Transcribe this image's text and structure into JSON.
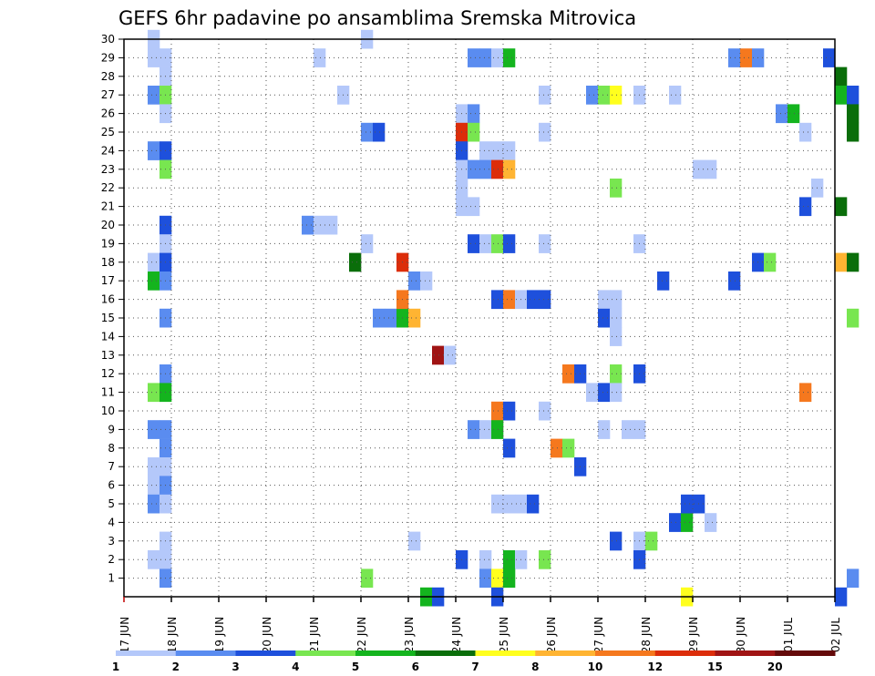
{
  "chart_data": {
    "type": "heatmap",
    "title": "GEFS 6hr padavine po ansamblima Sremska Mitrovica",
    "x_tick_labels": [
      "17 JUN",
      "18 JUN",
      "19 JUN",
      "20 JUN",
      "21 JUN",
      "22 JUN",
      "23 JUN",
      "24 JUN",
      "25 JUN",
      "26 JUN",
      "27 JUN",
      "28 JUN",
      "29 JUN",
      "30 JUN",
      "01 JUL",
      "02 JUL"
    ],
    "y_tick_labels": [
      "1",
      "2",
      "3",
      "4",
      "5",
      "6",
      "7",
      "8",
      "9",
      "10",
      "11",
      "12",
      "13",
      "14",
      "15",
      "16",
      "17",
      "18",
      "19",
      "20",
      "21",
      "22",
      "23",
      "24",
      "25",
      "26",
      "27",
      "28",
      "29",
      "30"
    ],
    "x_range_days": [
      0,
      15
    ],
    "y_range": [
      0,
      30
    ],
    "grid": true,
    "legend_position": "bottom",
    "legend_labels": [
      "1",
      "2",
      "3",
      "4",
      "5",
      "6",
      "7",
      "8",
      "10",
      "12",
      "15",
      "20"
    ],
    "legend_colors": [
      "#b4c8fa",
      "#5a8cf0",
      "#1e50dc",
      "#78e650",
      "#14b41e",
      "#0a6e0a",
      "#ffff1e",
      "#ffb432",
      "#f5781e",
      "#dc2d0a",
      "#a01414",
      "#640a0a"
    ],
    "cells_note": "each cell: [x_day_offset_from_17_JUN, member, color_index]",
    "cells": [
      [
        0.5,
        30,
        0
      ],
      [
        0.5,
        29,
        0
      ],
      [
        0.75,
        29,
        0
      ],
      [
        0.75,
        28,
        0
      ],
      [
        0.5,
        27,
        1
      ],
      [
        0.75,
        27,
        3
      ],
      [
        0.75,
        26,
        0
      ],
      [
        0.5,
        24,
        1
      ],
      [
        0.75,
        24,
        2
      ],
      [
        0.75,
        23,
        3
      ],
      [
        0.75,
        20,
        2
      ],
      [
        0.75,
        19,
        0
      ],
      [
        0.5,
        18,
        0
      ],
      [
        0.75,
        18,
        2
      ],
      [
        0.5,
        17,
        4
      ],
      [
        0.75,
        17,
        1
      ],
      [
        0.75,
        15,
        1
      ],
      [
        0.75,
        12,
        1
      ],
      [
        0.5,
        11,
        3
      ],
      [
        0.75,
        11,
        4
      ],
      [
        0.5,
        9,
        1
      ],
      [
        0.75,
        9,
        1
      ],
      [
        0.75,
        8,
        1
      ],
      [
        0.5,
        7,
        0
      ],
      [
        0.75,
        7,
        0
      ],
      [
        0.5,
        6,
        0
      ],
      [
        0.75,
        6,
        1
      ],
      [
        0.5,
        5,
        1
      ],
      [
        0.75,
        5,
        0
      ],
      [
        0.75,
        3,
        0
      ],
      [
        0.5,
        2,
        0
      ],
      [
        0.75,
        2,
        0
      ],
      [
        0.75,
        1,
        1
      ],
      [
        4.0,
        29,
        0
      ],
      [
        4.5,
        27,
        0
      ],
      [
        3.75,
        20,
        1
      ],
      [
        4.0,
        20,
        0
      ],
      [
        4.25,
        20,
        0
      ],
      [
        5.0,
        30,
        0
      ],
      [
        5.0,
        25,
        1
      ],
      [
        5.25,
        25,
        2
      ],
      [
        4.75,
        18,
        5
      ],
      [
        5.0,
        19,
        0
      ],
      [
        5.0,
        1,
        3
      ],
      [
        5.25,
        15,
        1
      ],
      [
        5.5,
        15,
        1
      ],
      [
        5.75,
        15,
        4
      ],
      [
        6.0,
        15,
        7
      ],
      [
        5.75,
        16,
        8
      ],
      [
        5.75,
        18,
        9
      ],
      [
        6.0,
        17,
        1
      ],
      [
        6.25,
        17,
        0
      ],
      [
        6.0,
        3,
        0
      ],
      [
        6.5,
        13,
        10
      ],
      [
        6.75,
        13,
        0
      ],
      [
        6.25,
        0,
        4
      ],
      [
        6.5,
        0,
        2
      ],
      [
        7.25,
        29,
        1
      ],
      [
        7.5,
        29,
        1
      ],
      [
        7.75,
        29,
        0
      ],
      [
        8.0,
        29,
        4
      ],
      [
        7.0,
        26,
        0
      ],
      [
        7.25,
        26,
        1
      ],
      [
        7.0,
        25,
        9
      ],
      [
        7.25,
        25,
        3
      ],
      [
        7.0,
        24,
        2
      ],
      [
        7.5,
        24,
        0
      ],
      [
        7.75,
        24,
        0
      ],
      [
        8.0,
        24,
        0
      ],
      [
        7.0,
        23,
        0
      ],
      [
        7.25,
        23,
        1
      ],
      [
        7.5,
        23,
        1
      ],
      [
        7.75,
        23,
        9
      ],
      [
        8.0,
        23,
        7
      ],
      [
        7.0,
        22,
        0
      ],
      [
        7.0,
        21,
        0
      ],
      [
        7.25,
        21,
        0
      ],
      [
        7.25,
        19,
        2
      ],
      [
        7.5,
        19,
        0
      ],
      [
        7.75,
        19,
        3
      ],
      [
        8.0,
        19,
        2
      ],
      [
        7.75,
        16,
        2
      ],
      [
        8.0,
        16,
        8
      ],
      [
        8.25,
        16,
        0
      ],
      [
        8.5,
        16,
        2
      ],
      [
        8.75,
        16,
        2
      ],
      [
        7.75,
        10,
        8
      ],
      [
        8.0,
        10,
        2
      ],
      [
        7.25,
        9,
        1
      ],
      [
        7.5,
        9,
        0
      ],
      [
        7.75,
        9,
        4
      ],
      [
        8.0,
        8,
        2
      ],
      [
        7.75,
        5,
        0
      ],
      [
        8.0,
        5,
        0
      ],
      [
        8.25,
        5,
        0
      ],
      [
        8.5,
        5,
        2
      ],
      [
        7.0,
        2,
        2
      ],
      [
        7.5,
        2,
        0
      ],
      [
        8.0,
        2,
        4
      ],
      [
        8.25,
        2,
        0
      ],
      [
        8.75,
        2,
        3
      ],
      [
        7.5,
        1,
        1
      ],
      [
        7.75,
        1,
        6
      ],
      [
        8.0,
        1,
        4
      ],
      [
        7.75,
        0,
        2
      ],
      [
        8.75,
        27,
        0
      ],
      [
        8.75,
        25,
        0
      ],
      [
        8.75,
        19,
        0
      ],
      [
        8.75,
        10,
        0
      ],
      [
        9.25,
        12,
        8
      ],
      [
        9.5,
        12,
        2
      ],
      [
        9.0,
        8,
        8
      ],
      [
        9.25,
        8,
        3
      ],
      [
        9.5,
        7,
        2
      ],
      [
        9.75,
        27,
        1
      ],
      [
        10.0,
        27,
        3
      ],
      [
        10.25,
        27,
        6
      ],
      [
        10.75,
        27,
        0
      ],
      [
        11.5,
        27,
        0
      ],
      [
        10.25,
        22,
        3
      ],
      [
        10.0,
        16,
        0
      ],
      [
        10.25,
        16,
        0
      ],
      [
        10.0,
        15,
        2
      ],
      [
        10.25,
        15,
        0
      ],
      [
        10.25,
        14,
        0
      ],
      [
        10.25,
        12,
        3
      ],
      [
        9.75,
        11,
        0
      ],
      [
        10.0,
        11,
        2
      ],
      [
        10.25,
        11,
        0
      ],
      [
        10.0,
        9,
        0
      ],
      [
        10.5,
        9,
        0
      ],
      [
        10.75,
        9,
        0
      ],
      [
        10.75,
        19,
        0
      ],
      [
        10.75,
        12,
        2
      ],
      [
        11.25,
        17,
        2
      ],
      [
        10.25,
        3,
        2
      ],
      [
        10.75,
        3,
        0
      ],
      [
        11.0,
        3,
        3
      ],
      [
        10.75,
        2,
        2
      ],
      [
        11.5,
        4,
        2
      ],
      [
        11.75,
        4,
        4
      ],
      [
        11.75,
        5,
        2
      ],
      [
        12.0,
        5,
        2
      ],
      [
        12.25,
        4,
        0
      ],
      [
        11.75,
        0,
        6
      ],
      [
        12.0,
        23,
        0
      ],
      [
        12.25,
        23,
        0
      ],
      [
        12.75,
        29,
        1
      ],
      [
        13.0,
        29,
        8
      ],
      [
        13.25,
        29,
        1
      ],
      [
        12.75,
        17,
        2
      ],
      [
        13.25,
        18,
        2
      ],
      [
        13.5,
        18,
        3
      ],
      [
        13.75,
        26,
        1
      ],
      [
        14.0,
        26,
        4
      ],
      [
        14.25,
        25,
        0
      ],
      [
        14.5,
        22,
        0
      ],
      [
        14.25,
        21,
        2
      ],
      [
        14.25,
        11,
        8
      ],
      [
        14.75,
        29,
        2
      ],
      [
        15.0,
        28,
        5
      ],
      [
        15.0,
        27,
        4
      ],
      [
        15.25,
        27,
        2
      ],
      [
        15.25,
        26,
        5
      ],
      [
        15.25,
        25,
        5
      ],
      [
        15.0,
        21,
        5
      ],
      [
        15.0,
        18,
        7
      ],
      [
        15.25,
        18,
        5
      ],
      [
        15.25,
        15,
        3
      ],
      [
        15.25,
        1,
        1
      ],
      [
        15.0,
        0,
        2
      ]
    ]
  }
}
